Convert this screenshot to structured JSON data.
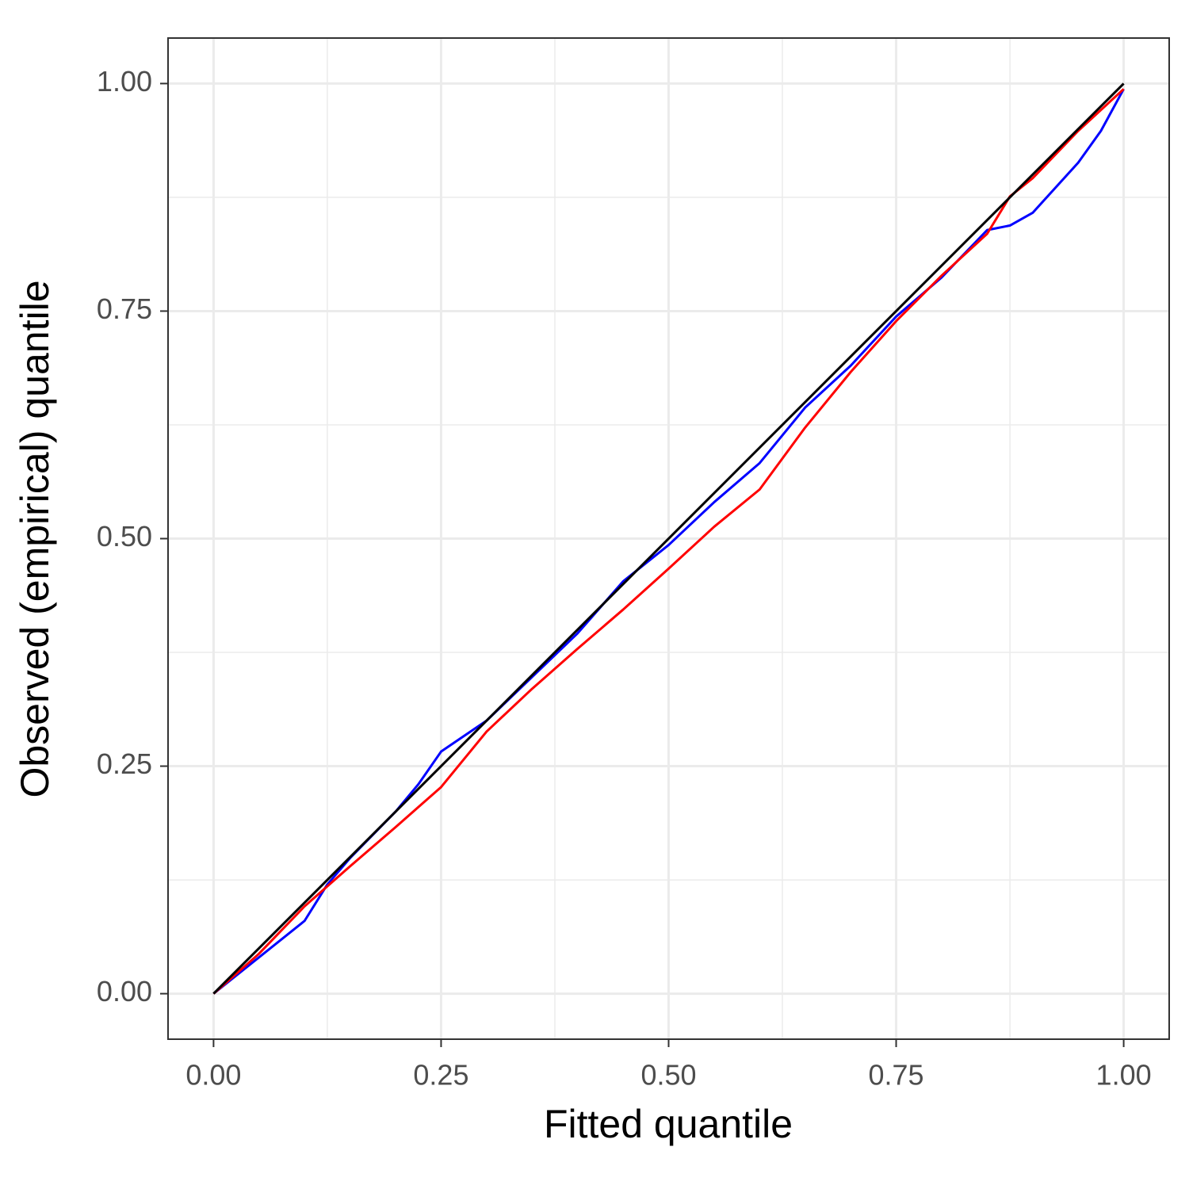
{
  "chart_data": {
    "type": "line",
    "xlabel": "Fitted quantile",
    "ylabel": "Observed (empirical) quantile",
    "xlim": [
      -0.05,
      1.05
    ],
    "ylim": [
      -0.05,
      1.05
    ],
    "xticks": [
      {
        "value": 0,
        "label": "0.00"
      },
      {
        "value": 0.25,
        "label": "0.25"
      },
      {
        "value": 0.5,
        "label": "0.50"
      },
      {
        "value": 0.75,
        "label": "0.75"
      },
      {
        "value": 1,
        "label": "1.00"
      }
    ],
    "yticks": [
      {
        "value": 0,
        "label": "0.00"
      },
      {
        "value": 0.25,
        "label": "0.25"
      },
      {
        "value": 0.5,
        "label": "0.50"
      },
      {
        "value": 0.75,
        "label": "0.75"
      },
      {
        "value": 1,
        "label": "1.00"
      }
    ],
    "minor_xticks": [
      0.125,
      0.375,
      0.625,
      0.875
    ],
    "minor_yticks": [
      0.125,
      0.375,
      0.625,
      0.875
    ],
    "grid": true,
    "series": [
      {
        "color": "#0000ff",
        "x": [
          0,
          0.05,
          0.1,
          0.125,
          0.15,
          0.2,
          0.225,
          0.25,
          0.3,
          0.35,
          0.4,
          0.45,
          0.5,
          0.55,
          0.6,
          0.65,
          0.7,
          0.75,
          0.8,
          0.85,
          0.875,
          0.9,
          0.95,
          0.975,
          1
        ],
        "values": [
          0,
          0.04,
          0.08,
          0.12,
          0.149,
          0.2,
          0.23,
          0.266,
          0.3,
          0.348,
          0.396,
          0.453,
          0.493,
          0.54,
          0.583,
          0.644,
          0.69,
          0.744,
          0.787,
          0.839,
          0.844,
          0.858,
          0.913,
          0.948,
          0.994
        ]
      },
      {
        "color": "#ff0000",
        "x": [
          0,
          0.05,
          0.1,
          0.15,
          0.2,
          0.25,
          0.3,
          0.35,
          0.4,
          0.45,
          0.5,
          0.55,
          0.6,
          0.65,
          0.7,
          0.75,
          0.8,
          0.85,
          0.875,
          0.9,
          0.95,
          1
        ],
        "values": [
          0,
          0.044,
          0.096,
          0.14,
          0.183,
          0.227,
          0.288,
          0.335,
          0.379,
          0.422,
          0.467,
          0.513,
          0.554,
          0.622,
          0.683,
          0.739,
          0.789,
          0.835,
          0.876,
          0.896,
          0.948,
          0.994
        ]
      },
      {
        "color": "#000000",
        "x": [
          0,
          1
        ],
        "values": [
          0,
          1
        ]
      }
    ]
  }
}
